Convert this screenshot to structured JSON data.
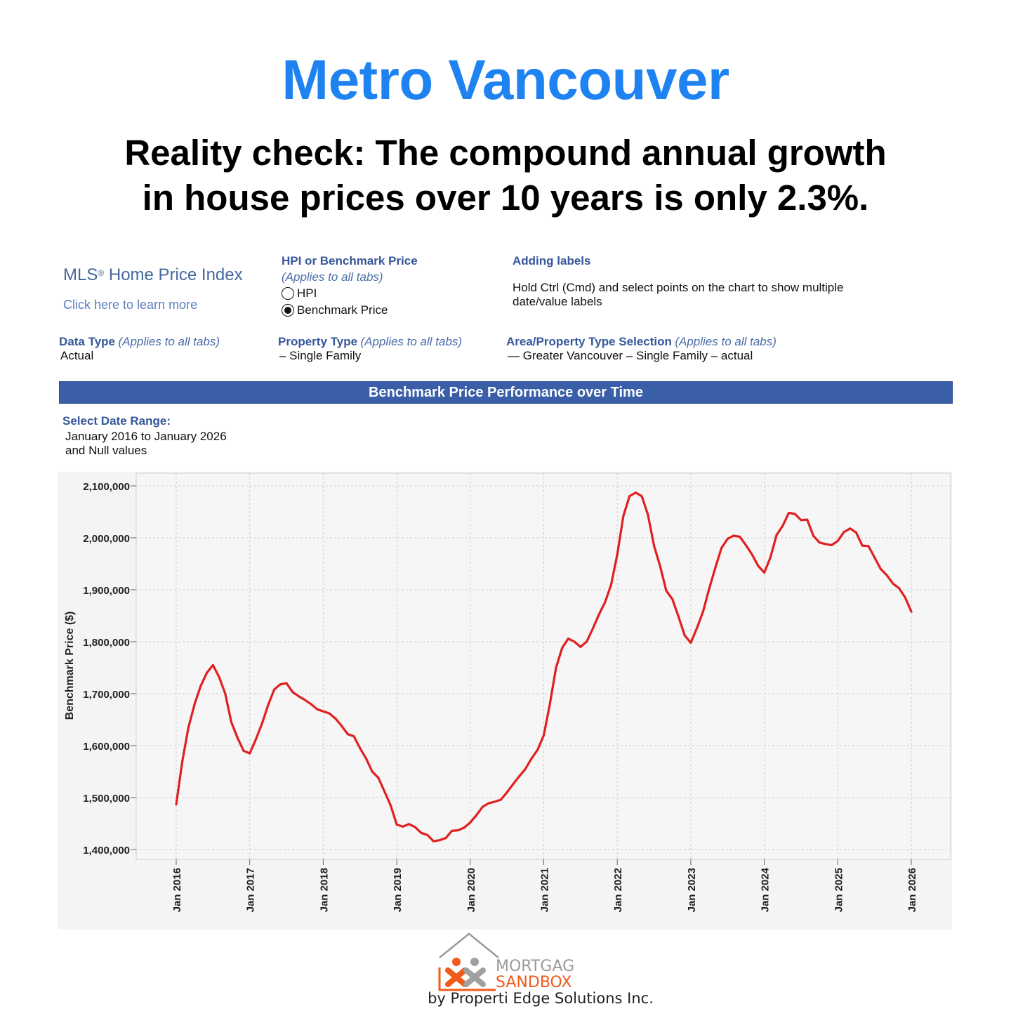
{
  "page": {
    "title": "Metro Vancouver",
    "subtitle_line1": "Reality check: The compound annual growth",
    "subtitle_line2": "in house prices over 10 years is only 2.3%."
  },
  "controls": {
    "mls_title": "MLS",
    "mls_reg": "®",
    "mls_title_rest": " Home Price Index",
    "learn_more": "Click here to learn more",
    "hpi_heading": "HPI or Benchmark Price",
    "hpi_applies": "(Applies to all tabs)",
    "options": [
      {
        "label": "HPI",
        "selected": false
      },
      {
        "label": "Benchmark Price",
        "selected": true
      }
    ],
    "adding_labels_heading": "Adding labels",
    "adding_labels_line1": "Hold Ctrl (Cmd) and select points on the chart to show multiple",
    "adding_labels_line2": "date/value labels",
    "data_type_heading": "Data Type",
    "data_type_applies": "(Applies to all tabs)",
    "data_type_value": "Actual",
    "property_type_heading": "Property Type",
    "property_type_applies": "(Applies to all tabs)",
    "property_type_value": "– Single Family",
    "area_heading": "Area/Property Type Selection",
    "area_applies": "(Applies to all tabs)",
    "area_value": "— Greater Vancouver – Single Family – actual",
    "banner": "Benchmark Price Performance over Time",
    "date_range_heading": "Select Date Range:",
    "date_range_line1": "January 2016 to January 2026",
    "date_range_line2": "and Null values"
  },
  "chart_data": {
    "type": "line",
    "ylabel": "Benchmark Price ($)",
    "ylim": [
      1380000,
      2125000
    ],
    "yticks": [
      1400000,
      1500000,
      1600000,
      1700000,
      1800000,
      1900000,
      2000000,
      2100000
    ],
    "ytick_labels": [
      "1,400,000",
      "1,500,000",
      "1,600,000",
      "1,700,000",
      "1,800,000",
      "1,900,000",
      "2,000,000",
      "2,100,000"
    ],
    "xticks": [
      "Jan 2016",
      "Jan 2017",
      "Jan 2018",
      "Jan 2019",
      "Jan 2020",
      "Jan 2021",
      "Jan 2022",
      "Jan 2023",
      "Jan 2024",
      "Jan 2025",
      "Jan 2026"
    ],
    "grid": true,
    "line_color": "#e02020",
    "x_start": "2016-01",
    "x_step": "1 month",
    "values": [
      1487000,
      1570000,
      1635000,
      1680000,
      1715000,
      1740000,
      1755000,
      1732000,
      1700000,
      1645000,
      1615000,
      1590000,
      1585000,
      1612000,
      1642000,
      1678000,
      1708000,
      1718000,
      1720000,
      1703000,
      1695000,
      1688000,
      1680000,
      1670000,
      1666000,
      1662000,
      1652000,
      1638000,
      1622000,
      1618000,
      1595000,
      1575000,
      1550000,
      1538000,
      1512000,
      1485000,
      1448000,
      1444000,
      1449000,
      1443000,
      1432000,
      1428000,
      1416000,
      1418000,
      1422000,
      1436000,
      1437000,
      1442000,
      1452000,
      1466000,
      1482000,
      1489000,
      1492000,
      1496000,
      1510000,
      1526000,
      1541000,
      1555000,
      1575000,
      1592000,
      1620000,
      1680000,
      1750000,
      1788000,
      1806000,
      1800000,
      1790000,
      1800000,
      1825000,
      1852000,
      1876000,
      1910000,
      1968000,
      2042000,
      2080000,
      2087000,
      2080000,
      2045000,
      1985000,
      1945000,
      1898000,
      1882000,
      1848000,
      1812000,
      1798000,
      1826000,
      1858000,
      1902000,
      1942000,
      1980000,
      1998000,
      2004000,
      2002000,
      1986000,
      1968000,
      1946000,
      1933000,
      1962000,
      2005000,
      2023000,
      2048000,
      2046000,
      2034000,
      2035000,
      2004000,
      1991000,
      1988000,
      1986000,
      1994000,
      2011000,
      2018000,
      2010000,
      1985000,
      1984000,
      1962000,
      1940000,
      1928000,
      1912000,
      1903000,
      1885000,
      1858000
    ]
  },
  "footer": {
    "logo_word1": "MORTGAGE",
    "logo_word2": "SANDBOX",
    "byline": "by Properti Edge Solutions Inc."
  }
}
